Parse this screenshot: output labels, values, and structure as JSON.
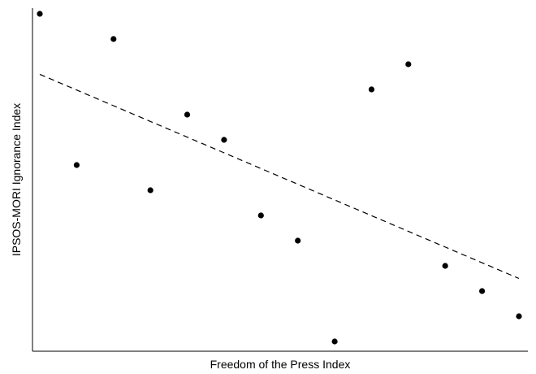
{
  "chart_data": {
    "type": "scatter",
    "title": "",
    "xlabel": "Freedom of the Press Index",
    "ylabel": "IPSOS-MORI Ignorance Index",
    "xlim": [
      0,
      14
    ],
    "ylim": [
      0,
      14
    ],
    "grid": false,
    "legend": "none",
    "tick_labels": false,
    "series": [
      {
        "x": [
          1,
          2,
          3,
          4,
          5,
          6,
          7,
          8,
          9,
          10,
          11,
          12,
          13,
          14
        ],
        "y": [
          14,
          8,
          13,
          7,
          10,
          9,
          6,
          5,
          1,
          11,
          12,
          4,
          3,
          2
        ]
      }
    ],
    "trendline": {
      "style": "dashed",
      "x": [
        1,
        14
      ],
      "y": [
        11.6,
        3.5
      ]
    },
    "colors": {
      "points": "#000000",
      "trendline": "#000000",
      "axes": "#000000"
    }
  }
}
